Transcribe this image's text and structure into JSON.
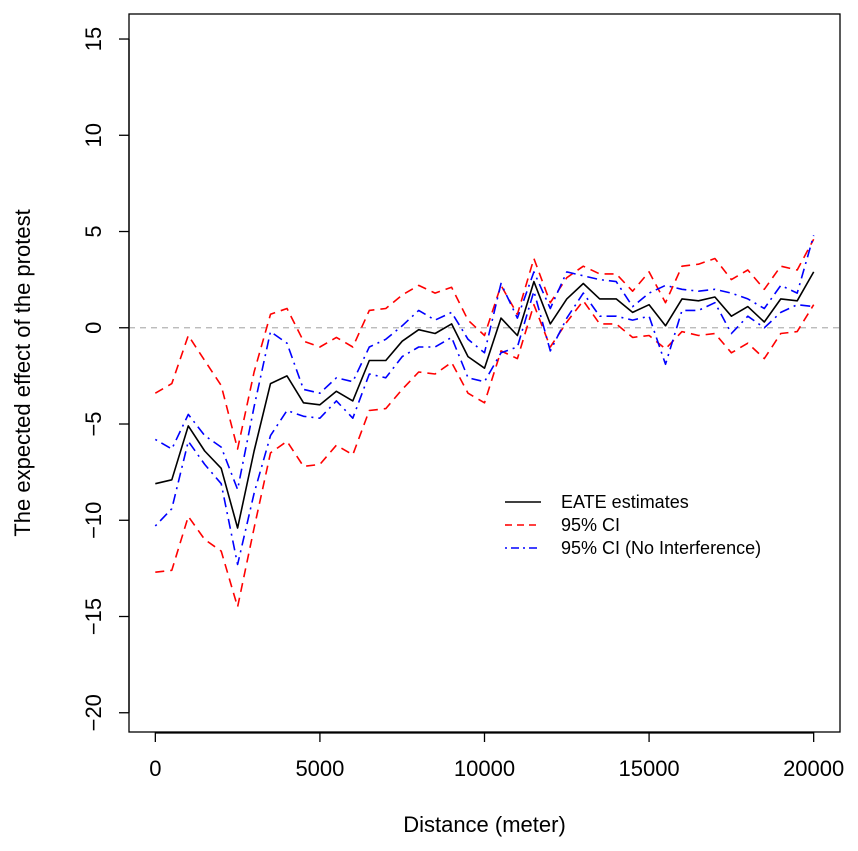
{
  "chart_data": {
    "type": "line",
    "title": "",
    "xlabel": "Distance (meter)",
    "ylabel": "The expected effect of the protest",
    "xlim": [
      -800,
      20800
    ],
    "ylim": [
      -21,
      16.3
    ],
    "x_ticks": [
      0,
      5000,
      10000,
      15000,
      20000
    ],
    "y_ticks": [
      -20,
      -15,
      -10,
      -5,
      0,
      5,
      10,
      15
    ],
    "reference_line": {
      "y": 0,
      "style": "dashed",
      "color": "#b3b3b3"
    },
    "legend_position": "center-right",
    "x": [
      0,
      500,
      1000,
      1500,
      2000,
      2500,
      3000,
      3500,
      4000,
      4500,
      5000,
      5500,
      6000,
      6500,
      7000,
      7500,
      8000,
      8500,
      9000,
      9500,
      10000,
      10500,
      11000,
      11500,
      12000,
      12500,
      13000,
      13500,
      14000,
      14500,
      15000,
      15500,
      16000,
      16500,
      17000,
      17500,
      18000,
      18500,
      19000,
      19500,
      20000
    ],
    "series": [
      {
        "name": "EATE estimates",
        "color": "#000000",
        "dash": "solid",
        "values": [
          -8.1,
          -7.9,
          -5.1,
          -6.4,
          -7.3,
          -10.4,
          -6.4,
          -2.9,
          -2.5,
          -3.9,
          -4.0,
          -3.3,
          -3.8,
          -1.7,
          -1.7,
          -0.7,
          -0.1,
          -0.3,
          0.2,
          -1.5,
          -2.1,
          0.5,
          -0.4,
          2.4,
          0.2,
          1.5,
          2.3,
          1.5,
          1.5,
          0.8,
          1.2,
          0.1,
          1.5,
          1.4,
          1.6,
          0.6,
          1.1,
          0.3,
          1.5,
          1.4,
          2.9
        ]
      },
      {
        "name": "95% CI",
        "color": "#ff0000",
        "dash": "dashed",
        "values": [
          -3.4,
          -2.9,
          -0.4,
          -1.7,
          -3.0,
          -6.3,
          -2.3,
          0.7,
          1.0,
          -0.7,
          -1.0,
          -0.5,
          -1.0,
          0.9,
          1.0,
          1.7,
          2.2,
          1.8,
          2.1,
          0.4,
          -0.4,
          2.2,
          0.7,
          3.6,
          1.3,
          2.6,
          3.2,
          2.8,
          2.8,
          1.9,
          2.9,
          1.3,
          3.2,
          3.3,
          3.6,
          2.5,
          3.0,
          2.0,
          3.2,
          3.0,
          4.6
        ]
      },
      {
        "name": "95% CI",
        "color": "#ff0000",
        "dash": "dashed",
        "values": [
          -12.7,
          -12.6,
          -9.8,
          -11.0,
          -11.6,
          -14.5,
          -10.4,
          -6.5,
          -5.9,
          -7.2,
          -7.1,
          -6.1,
          -6.6,
          -4.3,
          -4.2,
          -3.2,
          -2.3,
          -2.4,
          -1.8,
          -3.4,
          -3.9,
          -1.2,
          -1.6,
          1.2,
          -1.0,
          0.3,
          1.4,
          0.2,
          0.2,
          -0.5,
          -0.4,
          -1.1,
          -0.2,
          -0.4,
          -0.3,
          -1.3,
          -0.8,
          -1.6,
          -0.3,
          -0.2,
          1.2
        ]
      },
      {
        "name": "95% CI (No Interference)",
        "color": "#0000ff",
        "dash": "dotdash",
        "values": [
          -5.8,
          -6.3,
          -4.5,
          -5.6,
          -6.2,
          -8.4,
          -4.1,
          -0.2,
          -0.8,
          -3.2,
          -3.4,
          -2.6,
          -2.8,
          -1.0,
          -0.6,
          0.1,
          0.9,
          0.4,
          0.8,
          -0.6,
          -1.3,
          2.3,
          0.5,
          2.9,
          1.0,
          2.9,
          2.7,
          2.5,
          2.4,
          1.1,
          1.8,
          2.2,
          2.0,
          1.9,
          2.0,
          1.8,
          1.5,
          1.0,
          2.2,
          1.8,
          4.8
        ]
      },
      {
        "name": "95% CI (No Interference)",
        "color": "#0000ff",
        "dash": "dotdash",
        "values": [
          -10.3,
          -9.4,
          -5.9,
          -7.1,
          -8.1,
          -12.3,
          -8.6,
          -5.6,
          -4.3,
          -4.6,
          -4.7,
          -3.8,
          -4.7,
          -2.4,
          -2.6,
          -1.5,
          -1.0,
          -1.0,
          -0.5,
          -2.6,
          -2.8,
          -1.3,
          -1.0,
          1.9,
          -1.2,
          0.5,
          1.8,
          0.6,
          0.6,
          0.4,
          0.6,
          -1.9,
          0.9,
          0.9,
          1.3,
          -0.3,
          0.6,
          0.0,
          0.8,
          1.2,
          1.1
        ]
      }
    ],
    "legend": [
      {
        "label": "EATE estimates",
        "color": "#000000",
        "dash": "solid"
      },
      {
        "label": "95% CI",
        "color": "#ff0000",
        "dash": "dashed"
      },
      {
        "label": "95% CI (No Interference)",
        "color": "#0000ff",
        "dash": "dotdash"
      }
    ]
  }
}
